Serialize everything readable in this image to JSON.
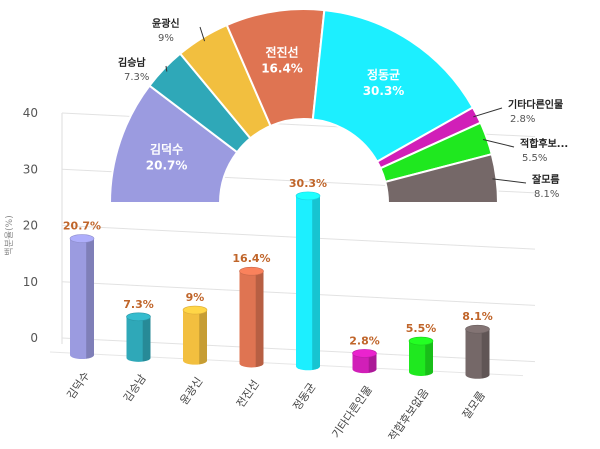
{
  "chart_data": [
    {
      "type": "bar",
      "ylabel": "백분율(%)",
      "ylim": [
        0,
        40
      ],
      "yticks": [
        0,
        10,
        20,
        30,
        40
      ],
      "categories": [
        "김덕수",
        "김승남",
        "윤광신",
        "전진선",
        "정동균",
        "기타다른인물",
        "적합후보없음",
        "잘모름"
      ],
      "values": [
        20.7,
        7.3,
        9,
        16.4,
        30.3,
        2.8,
        5.5,
        8.1
      ],
      "value_labels": [
        "20.7%",
        "7.3%",
        "9%",
        "16.4%",
        "30.3%",
        "2.8%",
        "5.5%",
        "8.1%"
      ],
      "colors": [
        "#9b9be0",
        "#2fa8b8",
        "#f2bf3f",
        "#df7452",
        "#1cefff",
        "#d11fb8",
        "#1fe81f",
        "#756868"
      ],
      "grid": true
    },
    {
      "type": "pie",
      "variant": "half-donut",
      "slices": [
        {
          "name": "김덕수",
          "value": 20.7,
          "label": "20.7%",
          "color": "#9b9be0"
        },
        {
          "name": "김승남",
          "value": 7.3,
          "label": "7.3%",
          "color": "#2fa8b8"
        },
        {
          "name": "윤광신",
          "value": 9,
          "label": "9%",
          "color": "#f2bf3f"
        },
        {
          "name": "전진선",
          "value": 16.4,
          "label": "16.4%",
          "color": "#df7452"
        },
        {
          "name": "정동균",
          "value": 30.3,
          "label": "30.3%",
          "color": "#1cefff"
        },
        {
          "name": "기타다른인물",
          "value": 2.8,
          "label": "2.8%",
          "color": "#d11fb8"
        },
        {
          "name": "적합후보...",
          "value": 5.5,
          "label": "5.5%",
          "color": "#1fe81f"
        },
        {
          "name": "잘모름",
          "value": 8.1,
          "label": "8.1%",
          "color": "#756868"
        }
      ]
    }
  ]
}
